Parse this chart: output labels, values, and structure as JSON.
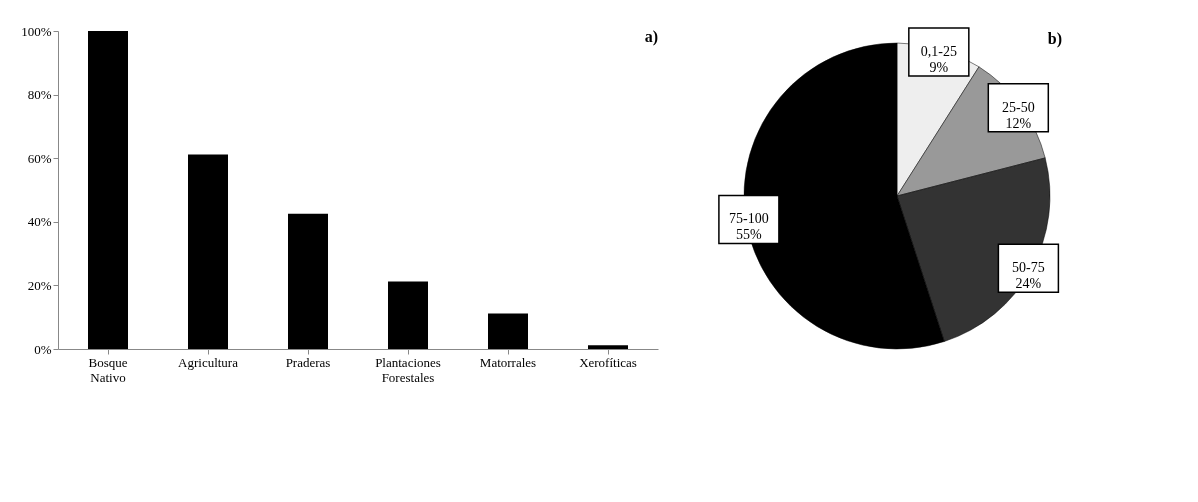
{
  "chart_data": [
    {
      "type": "bar",
      "title": "a)",
      "categories": [
        "Bosque Nativo",
        "Agricultura",
        "Praderas",
        "Plantaciones Forestales",
        "Matorrales",
        "Xerofíticas"
      ],
      "values": [
        100,
        61.2,
        42.5,
        21.2,
        11.2,
        1.2
      ],
      "color": "#000000",
      "ylim": [
        0,
        100
      ],
      "yticks": [
        {
          "value": 0,
          "label": "0%"
        },
        {
          "value": 20,
          "label": "20%"
        },
        {
          "value": 40,
          "label": "40%"
        },
        {
          "value": 60,
          "label": "60%"
        },
        {
          "value": 80,
          "label": "80%"
        },
        {
          "value": 100,
          "label": "100%"
        }
      ],
      "grid": false
    },
    {
      "type": "pie",
      "title": "b)",
      "categories": [
        "0,1-25",
        "25-50",
        "50-75",
        "75-100"
      ],
      "values": [
        9,
        12,
        24,
        55
      ],
      "colors": [
        "#eeeeee",
        "#999999",
        "#333333",
        "#000000"
      ],
      "value_labels": [
        "9%",
        "12%",
        "24%",
        "55%"
      ]
    }
  ]
}
